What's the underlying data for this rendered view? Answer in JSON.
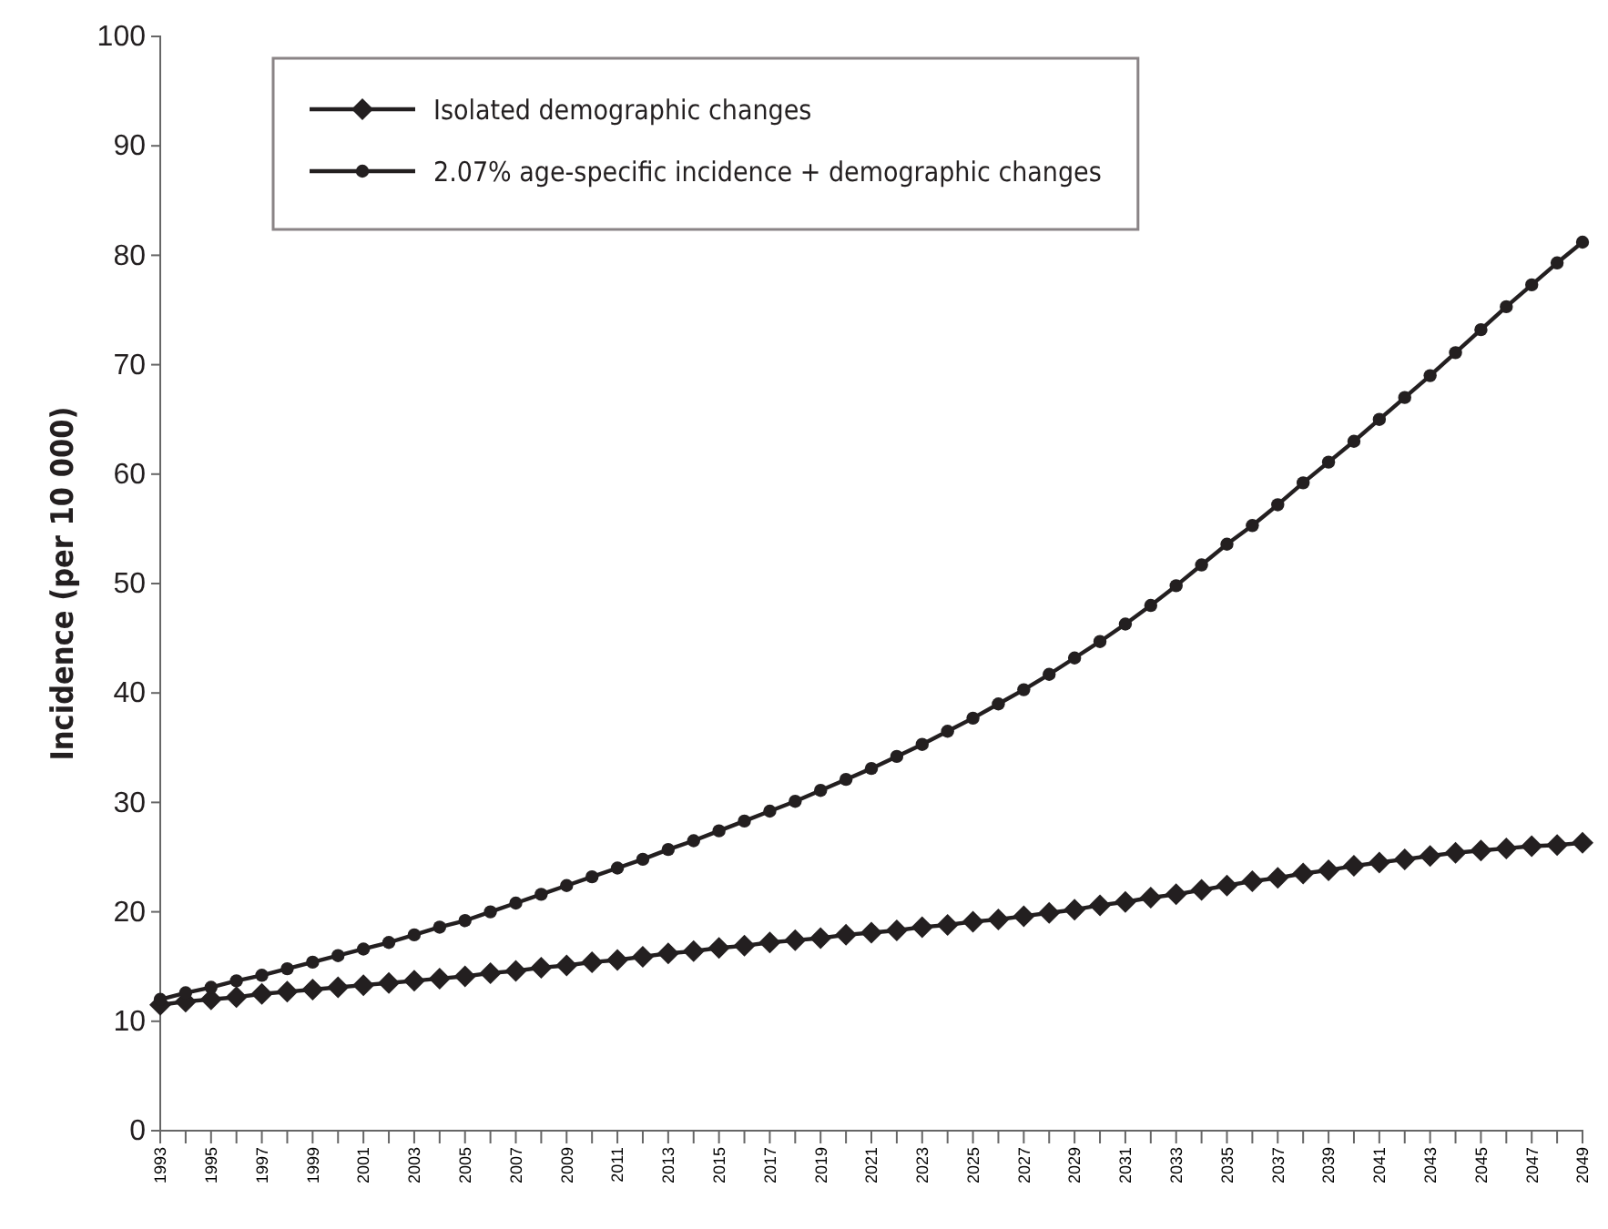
{
  "chart_data": {
    "type": "line",
    "ylabel": "Incidence (per 10 000)",
    "x": [
      1993,
      1994,
      1995,
      1996,
      1997,
      1998,
      1999,
      2000,
      2001,
      2002,
      2003,
      2004,
      2005,
      2006,
      2007,
      2008,
      2009,
      2010,
      2011,
      2012,
      2013,
      2014,
      2015,
      2016,
      2017,
      2018,
      2019,
      2020,
      2021,
      2022,
      2023,
      2024,
      2025,
      2026,
      2027,
      2028,
      2029,
      2030,
      2031,
      2032,
      2033,
      2034,
      2035,
      2036,
      2037,
      2038,
      2039,
      2040,
      2041,
      2042,
      2043,
      2044,
      2045,
      2046,
      2047,
      2048,
      2049
    ],
    "series": [
      {
        "name": "Isolated demographic changes",
        "color": "#231f20",
        "marker": "diamond",
        "values": [
          11.5,
          11.8,
          12.0,
          12.2,
          12.5,
          12.7,
          12.9,
          13.1,
          13.3,
          13.5,
          13.7,
          13.9,
          14.1,
          14.4,
          14.6,
          14.9,
          15.1,
          15.4,
          15.6,
          15.9,
          16.2,
          16.4,
          16.7,
          16.9,
          17.2,
          17.4,
          17.6,
          17.9,
          18.1,
          18.3,
          18.6,
          18.8,
          19.1,
          19.3,
          19.6,
          19.9,
          20.2,
          20.6,
          20.9,
          21.3,
          21.6,
          22.0,
          22.4,
          22.8,
          23.1,
          23.5,
          23.8,
          24.2,
          24.5,
          24.8,
          25.1,
          25.4,
          25.6,
          25.8,
          26.0,
          26.1,
          26.3
        ]
      },
      {
        "name": "2.07% age-specific incidence + demographic changes",
        "color": "#231f20",
        "marker": "circle",
        "values": [
          12.0,
          12.6,
          13.1,
          13.7,
          14.2,
          14.8,
          15.4,
          16.0,
          16.6,
          17.2,
          17.9,
          18.6,
          19.2,
          20.0,
          20.8,
          21.6,
          22.4,
          23.2,
          24.0,
          24.8,
          25.7,
          26.5,
          27.4,
          28.3,
          29.2,
          30.1,
          31.1,
          32.1,
          33.1,
          34.2,
          35.3,
          36.5,
          37.7,
          39.0,
          40.3,
          41.7,
          43.2,
          44.7,
          46.3,
          48.0,
          49.8,
          51.7,
          53.6,
          55.3,
          57.2,
          59.2,
          61.1,
          63.0,
          65.0,
          67.0,
          69.0,
          71.1,
          73.2,
          75.3,
          77.3,
          79.3,
          81.2
        ]
      }
    ],
    "xlim": [
      1993,
      2049
    ],
    "xticks": [
      1993,
      {
        "value": 1994,
        "label": null
      },
      1995,
      {
        "value": 1996,
        "label": null
      },
      1997,
      {
        "value": 1998,
        "label": null
      },
      1999,
      {
        "value": 2000,
        "label": null
      },
      2001,
      {
        "value": 2002,
        "label": null
      },
      2003,
      {
        "value": 2004,
        "label": null
      },
      2005,
      {
        "value": 2006,
        "label": null
      },
      2007,
      {
        "value": 2008,
        "label": null
      },
      2009,
      {
        "value": 2010,
        "label": null
      },
      2011,
      {
        "value": 2012,
        "label": null
      },
      2013,
      {
        "value": 2014,
        "label": null
      },
      2015,
      {
        "value": 2016,
        "label": null
      },
      2017,
      {
        "value": 2018,
        "label": null
      },
      2019,
      {
        "value": 2020,
        "label": null
      },
      2021,
      {
        "value": 2022,
        "label": null
      },
      2023,
      {
        "value": 2024,
        "label": null
      },
      2025,
      {
        "value": 2026,
        "label": null
      },
      2027,
      {
        "value": 2028,
        "label": null
      },
      2029,
      {
        "value": 2030,
        "label": null
      },
      2031,
      {
        "value": 2032,
        "label": null
      },
      2033,
      {
        "value": 2034,
        "label": null
      },
      2035,
      {
        "value": 2036,
        "label": null
      },
      2037,
      {
        "value": 2038,
        "label": null
      },
      2039,
      {
        "value": 2040,
        "label": null
      },
      2041,
      {
        "value": 2042,
        "label": null
      },
      2043,
      {
        "value": 2044,
        "label": null
      },
      2045,
      {
        "value": 2046,
        "label": null
      },
      2047,
      {
        "value": 2048,
        "label": null
      },
      2049
    ],
    "ylim": [
      0,
      100
    ],
    "yticks": [
      0,
      10,
      20,
      30,
      40,
      50,
      60,
      70,
      80,
      90,
      100
    ],
    "grid": false,
    "legend": "top left",
    "line_style": "solid"
  }
}
